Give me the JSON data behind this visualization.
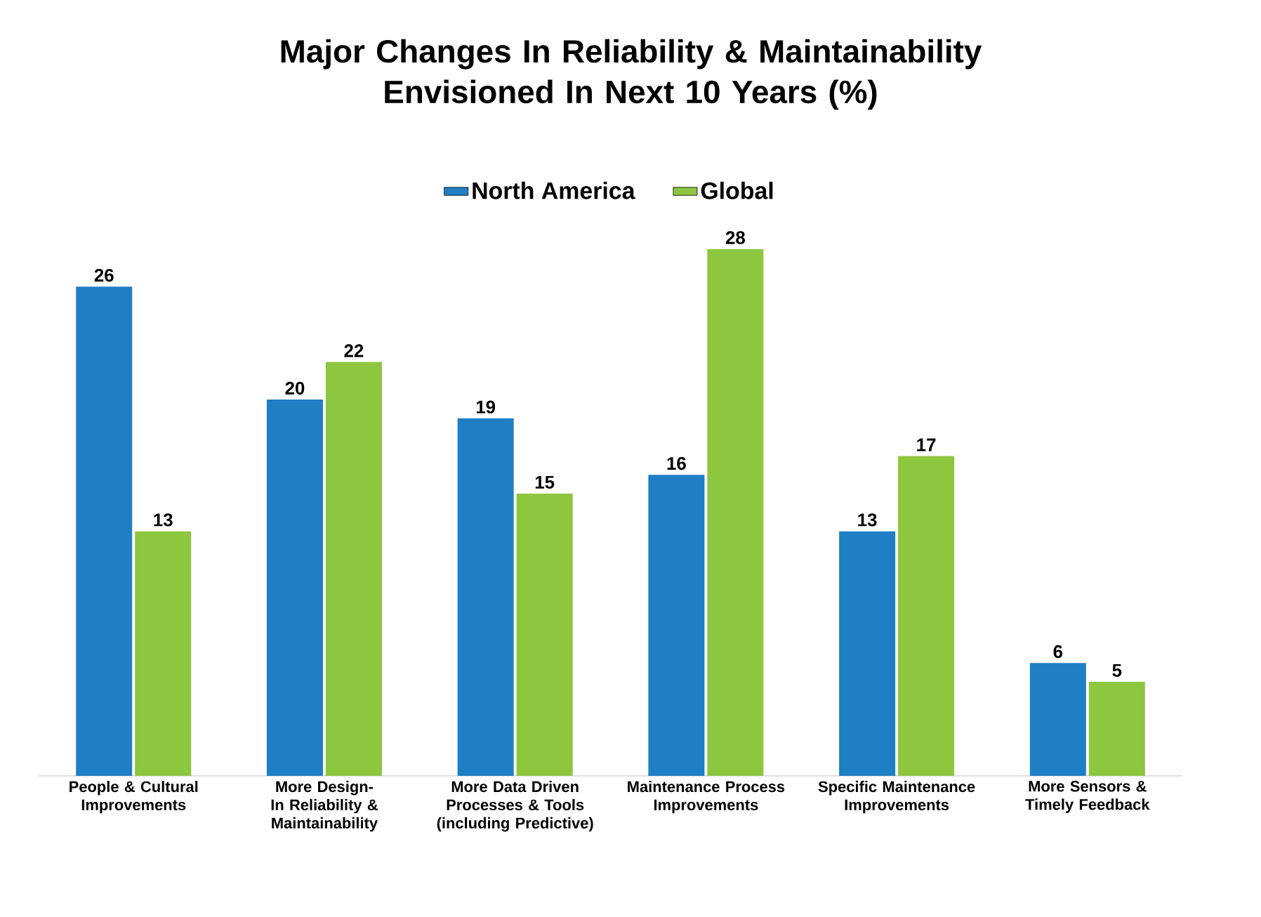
{
  "chart_data": {
    "type": "bar",
    "title": "Major Changes In Reliability & Maintainability Envisioned In Next 10 Years  (%)",
    "categories": [
      "People & Cultural Improvements",
      "More Design-In Reliability & Maintainability",
      "More Data Driven Processes & Tools (including Predictive)",
      "Maintenance Process Improvements",
      "Specific Maintenance Improvements",
      "More Sensors & Timely Feedback"
    ],
    "series": [
      {
        "name": "North America",
        "color": "#1f7fc4",
        "values": [
          26,
          20,
          19,
          16,
          13,
          6
        ]
      },
      {
        "name": "Global",
        "color": "#8dc63f",
        "values": [
          13,
          22,
          15,
          28,
          17,
          5
        ]
      }
    ],
    "data_labels": true,
    "legend": "top",
    "tick_labels": "x"
  }
}
